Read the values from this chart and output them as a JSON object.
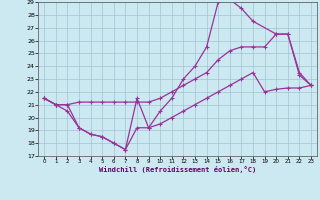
{
  "xlabel": "Windchill (Refroidissement éolien,°C)",
  "bg_color": "#cce8f0",
  "line_color": "#993399",
  "xlim": [
    -0.5,
    23.5
  ],
  "ylim": [
    17,
    29
  ],
  "xticks": [
    0,
    1,
    2,
    3,
    4,
    5,
    6,
    7,
    8,
    9,
    10,
    11,
    12,
    13,
    14,
    15,
    16,
    17,
    18,
    19,
    20,
    21,
    22,
    23
  ],
  "yticks": [
    17,
    18,
    19,
    20,
    21,
    22,
    23,
    24,
    25,
    26,
    27,
    28,
    29
  ],
  "line1_x": [
    0,
    1,
    2,
    3,
    4,
    5,
    6,
    7,
    8,
    9,
    10,
    11,
    12,
    13,
    14,
    15,
    16,
    17,
    18,
    20,
    21,
    22,
    23
  ],
  "line1_y": [
    21.5,
    21.0,
    20.5,
    19.2,
    18.7,
    18.5,
    18.0,
    17.5,
    21.5,
    19.2,
    20.5,
    21.5,
    23.0,
    24.0,
    25.5,
    29.0,
    29.2,
    28.5,
    27.5,
    26.5,
    26.5,
    23.5,
    22.5
  ],
  "line2_x": [
    0,
    1,
    2,
    3,
    4,
    5,
    6,
    7,
    8,
    9,
    10,
    11,
    12,
    13,
    14,
    15,
    16,
    17,
    18,
    19,
    20,
    21,
    22,
    23
  ],
  "line2_y": [
    21.5,
    21.0,
    21.0,
    21.2,
    21.2,
    21.2,
    21.2,
    21.2,
    21.2,
    21.2,
    21.5,
    22.0,
    22.5,
    23.0,
    23.5,
    24.5,
    25.2,
    25.5,
    25.5,
    25.5,
    26.5,
    26.5,
    23.3,
    22.5
  ],
  "line3_x": [
    0,
    1,
    2,
    3,
    4,
    5,
    6,
    7,
    8,
    9,
    10,
    11,
    12,
    13,
    14,
    15,
    16,
    17,
    18,
    19,
    20,
    21,
    22,
    23
  ],
  "line3_y": [
    21.5,
    21.0,
    21.0,
    19.2,
    18.7,
    18.5,
    18.0,
    17.5,
    19.2,
    19.2,
    19.5,
    20.0,
    20.5,
    21.0,
    21.5,
    22.0,
    22.5,
    23.0,
    23.5,
    22.0,
    22.2,
    22.3,
    22.3,
    22.5
  ]
}
